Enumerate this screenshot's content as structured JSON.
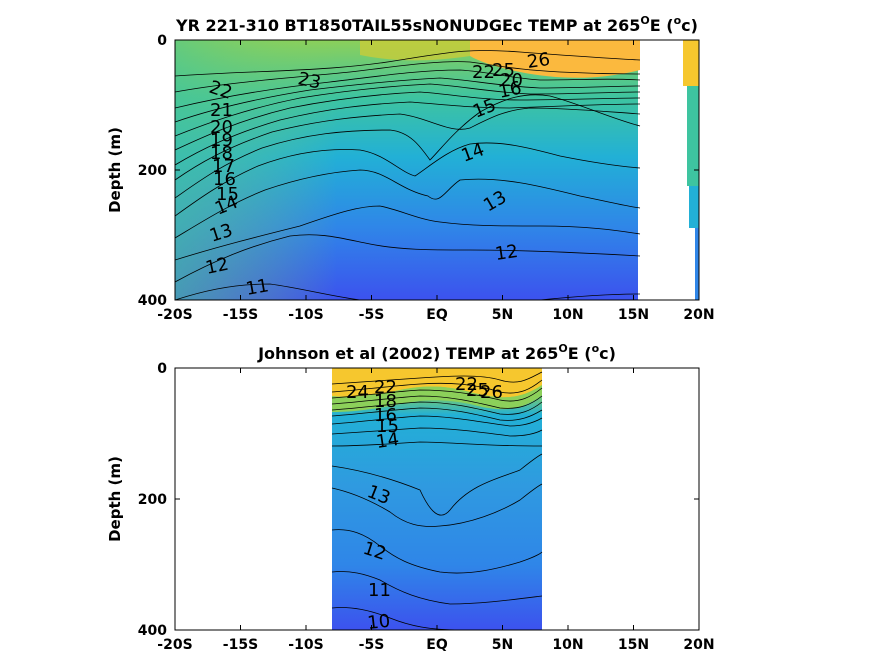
{
  "colors": {
    "deep": "#3c52ee",
    "mid_blue": "#2f86e8",
    "cyan": "#22b0d6",
    "teal": "#3ec4a0",
    "green": "#8cd05a",
    "yellow_green": "#c8cc3a",
    "orange": "#fbb93e",
    "yellow": "#f6d62e"
  },
  "chart_data": [
    {
      "type": "contour",
      "title": "YR 221-310 BT1850TAIL55sNONUDGEc TEMP at 265",
      "title_sup": "O",
      "title_suffix": "E (",
      "title_unit_sup": "o",
      "title_unit": "c)",
      "xlabel": "",
      "ylabel": "Depth (m)",
      "x_ticks": [
        "-20S",
        "-15S",
        "-10S",
        "-5S",
        "EQ",
        "5N",
        "10N",
        "15N",
        "20N"
      ],
      "x_tick_values": [
        -20,
        -15,
        -10,
        -5,
        0,
        5,
        10,
        15,
        20
      ],
      "y_ticks": [
        "0",
        "200",
        "400"
      ],
      "y_tick_values": [
        0,
        200,
        400
      ],
      "xlim": [
        -20,
        20
      ],
      "ylim": [
        0,
        400
      ],
      "y_reversed": true,
      "data_extent_lat": [
        -20,
        15
      ],
      "contour_levels": [
        11,
        12,
        13,
        14,
        15,
        16,
        17,
        18,
        19,
        20,
        21,
        22,
        23,
        24,
        25,
        26
      ],
      "contour_labels": [
        "22",
        "23",
        "21",
        "20",
        "19",
        "18",
        "17",
        "16",
        "15",
        "14",
        "13",
        "12",
        "11",
        "22",
        "25",
        "26",
        "20",
        "15",
        "16",
        "14",
        "13",
        "12"
      ]
    },
    {
      "type": "contour",
      "title": "Johnson et al (2002) TEMP at 265",
      "title_sup": "O",
      "title_suffix": "E (",
      "title_unit_sup": "o",
      "title_unit": "c)",
      "xlabel": "",
      "ylabel": "Depth (m)",
      "x_ticks": [
        "-20S",
        "-15S",
        "-10S",
        "-5S",
        "EQ",
        "5N",
        "10N",
        "15N",
        "20N"
      ],
      "x_tick_values": [
        -20,
        -15,
        -10,
        -5,
        0,
        5,
        10,
        15,
        20
      ],
      "y_ticks": [
        "0",
        "200",
        "400"
      ],
      "y_tick_values": [
        0,
        200,
        400
      ],
      "xlim": [
        -20,
        20
      ],
      "ylim": [
        0,
        400
      ],
      "y_reversed": true,
      "data_extent_lat": [
        -8,
        8
      ],
      "contour_levels": [
        10,
        11,
        12,
        13,
        14,
        15,
        16,
        17,
        18,
        19,
        20,
        21,
        22,
        23,
        24,
        25,
        26,
        27
      ],
      "contour_labels": [
        "24",
        "22",
        "18",
        "16",
        "15",
        "14",
        "13",
        "12",
        "11",
        "10",
        "22",
        "25",
        "26"
      ]
    }
  ]
}
